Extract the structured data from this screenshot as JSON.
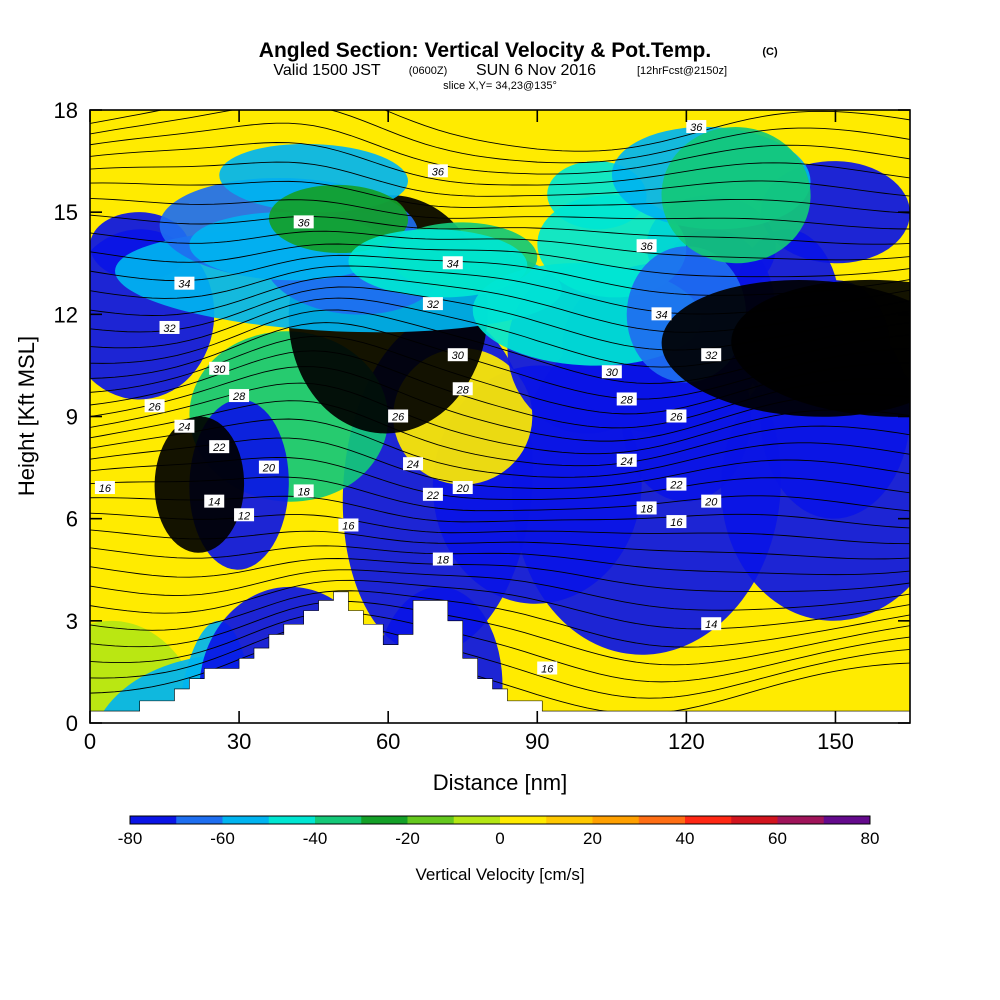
{
  "figure": {
    "title_main": "Angled Section: Vertical Velocity & Pot.Temp.",
    "title_tag": "(C)",
    "subtitle_a": "Valid 1500 JST",
    "subtitle_b": "(0600Z)",
    "subtitle_c": "SUN 6 Nov 2016",
    "subtitle_d": "[12hrFcst@2150z]",
    "slice_info": "slice X,Y= 34,23@135°"
  },
  "chart_data": {
    "type": "heatmap",
    "title": "Angled Section: Vertical Velocity & Pot.Temp.",
    "xlabel": "Distance [nm]",
    "ylabel": "Height [Kft MSL]",
    "xlim": [
      0,
      165
    ],
    "ylim": [
      0,
      18
    ],
    "xticks": [
      0,
      30,
      60,
      90,
      120,
      150
    ],
    "yticks": [
      0,
      3,
      6,
      9,
      12,
      15,
      18
    ],
    "colorbar": {
      "label": "Vertical Velocity [cm/s]",
      "ticks": [
        -80,
        -60,
        -40,
        -20,
        0,
        20,
        40,
        60,
        80
      ],
      "levels": [
        -80,
        -70,
        -60,
        -50,
        -40,
        -30,
        -20,
        -10,
        0,
        10,
        20,
        30,
        40,
        50,
        60,
        70,
        80
      ],
      "colors": [
        "#0a14e6",
        "#1e6ef0",
        "#00b4f0",
        "#00e6d2",
        "#14c878",
        "#14a028",
        "#64c81e",
        "#b4e614",
        "#ffeb00",
        "#ffc800",
        "#ffa000",
        "#ff6e14",
        "#ff2814",
        "#d2141e",
        "#a0145a",
        "#640a8c"
      ]
    },
    "terrain": [
      [
        0,
        0.35
      ],
      [
        10,
        0.35
      ],
      [
        10,
        0.65
      ],
      [
        17,
        0.65
      ],
      [
        17,
        1.0
      ],
      [
        20,
        1.0
      ],
      [
        20,
        1.3
      ],
      [
        23,
        1.3
      ],
      [
        23,
        1.6
      ],
      [
        30,
        1.6
      ],
      [
        30,
        1.9
      ],
      [
        33,
        1.9
      ],
      [
        33,
        2.2
      ],
      [
        36,
        2.2
      ],
      [
        36,
        2.6
      ],
      [
        39,
        2.6
      ],
      [
        39,
        2.9
      ],
      [
        43,
        2.9
      ],
      [
        43,
        3.3
      ],
      [
        46,
        3.3
      ],
      [
        46,
        3.6
      ],
      [
        49,
        3.6
      ],
      [
        49,
        3.85
      ],
      [
        52,
        3.85
      ],
      [
        52,
        3.3
      ],
      [
        55,
        3.3
      ],
      [
        55,
        2.9
      ],
      [
        59,
        2.9
      ],
      [
        59,
        2.3
      ],
      [
        62,
        2.3
      ],
      [
        62,
        2.6
      ],
      [
        65,
        2.6
      ],
      [
        65,
        3.6
      ],
      [
        72,
        3.6
      ],
      [
        72,
        3.0
      ],
      [
        75,
        3.0
      ],
      [
        75,
        1.9
      ],
      [
        78,
        1.9
      ],
      [
        78,
        1.3
      ],
      [
        81,
        1.3
      ],
      [
        81,
        1.0
      ],
      [
        84,
        1.0
      ],
      [
        84,
        0.65
      ],
      [
        91,
        0.65
      ],
      [
        91,
        0.35
      ],
      [
        165,
        0.35
      ]
    ],
    "contour_labels": [
      {
        "text": "36",
        "x": 122,
        "y": 17.5
      },
      {
        "text": "36",
        "x": 70,
        "y": 16.2
      },
      {
        "text": "36",
        "x": 43,
        "y": 14.7
      },
      {
        "text": "36",
        "x": 112,
        "y": 14.0
      },
      {
        "text": "34",
        "x": 73,
        "y": 13.5
      },
      {
        "text": "34",
        "x": 19,
        "y": 12.9
      },
      {
        "text": "32",
        "x": 69,
        "y": 12.3
      },
      {
        "text": "34",
        "x": 115,
        "y": 12.0
      },
      {
        "text": "32",
        "x": 16,
        "y": 11.6
      },
      {
        "text": "32",
        "x": 125,
        "y": 10.8
      },
      {
        "text": "30",
        "x": 74,
        "y": 10.8
      },
      {
        "text": "30",
        "x": 26,
        "y": 10.4
      },
      {
        "text": "30",
        "x": 105,
        "y": 10.3
      },
      {
        "text": "28",
        "x": 75,
        "y": 9.8
      },
      {
        "text": "28",
        "x": 30,
        "y": 9.6
      },
      {
        "text": "28",
        "x": 108,
        "y": 9.5
      },
      {
        "text": "26",
        "x": 13,
        "y": 9.3
      },
      {
        "text": "26",
        "x": 62,
        "y": 9.0
      },
      {
        "text": "26",
        "x": 118,
        "y": 9.0
      },
      {
        "text": "24",
        "x": 19,
        "y": 8.7
      },
      {
        "text": "24",
        "x": 65,
        "y": 7.6
      },
      {
        "text": "24",
        "x": 108,
        "y": 7.7
      },
      {
        "text": "22",
        "x": 26,
        "y": 8.1
      },
      {
        "text": "20",
        "x": 36,
        "y": 7.5
      },
      {
        "text": "22",
        "x": 69,
        "y": 6.7
      },
      {
        "text": "20",
        "x": 75,
        "y": 6.9
      },
      {
        "text": "22",
        "x": 118,
        "y": 7.0
      },
      {
        "text": "16",
        "x": 3,
        "y": 6.9
      },
      {
        "text": "18",
        "x": 43,
        "y": 6.8
      },
      {
        "text": "14",
        "x": 25,
        "y": 6.5
      },
      {
        "text": "20",
        "x": 125,
        "y": 6.5
      },
      {
        "text": "18",
        "x": 112,
        "y": 6.3
      },
      {
        "text": "12",
        "x": 31,
        "y": 6.1
      },
      {
        "text": "16",
        "x": 118,
        "y": 5.9
      },
      {
        "text": "16",
        "x": 52,
        "y": 5.8
      },
      {
        "text": "18",
        "x": 71,
        "y": 4.8
      },
      {
        "text": "14",
        "x": 125,
        "y": 2.9
      },
      {
        "text": "16",
        "x": 92,
        "y": 1.6
      }
    ]
  }
}
